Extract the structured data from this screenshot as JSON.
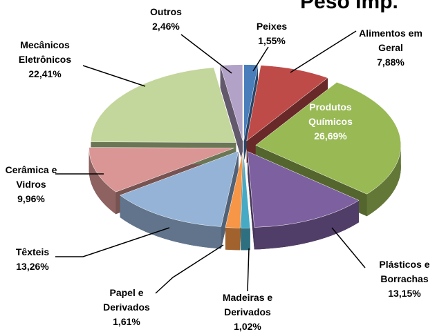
{
  "chart_data": {
    "type": "pie",
    "title": "Peso Imp.",
    "categories": [
      "Peixes",
      "Alimentos em Geral",
      "Produtos Químicos",
      "Plásticos e Borrachas",
      "Madeiras e Derivados",
      "Papel e Derivados",
      "Têxteis",
      "Cerâmica e Vidros",
      "Mecânicos Eletrônicos",
      "Outros"
    ],
    "values": [
      1.55,
      7.88,
      26.69,
      13.15,
      1.02,
      1.61,
      13.26,
      9.96,
      22.41,
      2.46
    ],
    "value_labels": [
      "1,55%",
      "7,88%",
      "26,69%",
      "13,15%",
      "1,02%",
      "1,61%",
      "13,26%",
      "9,96%",
      "22,41%",
      "2,46%"
    ],
    "colors": [
      "#4a7ebb",
      "#be4b48",
      "#98b954",
      "#7d60a0",
      "#46aac5",
      "#f79646",
      "#95b3d7",
      "#d99694",
      "#c3d69b",
      "#b3a2c7"
    ]
  }
}
